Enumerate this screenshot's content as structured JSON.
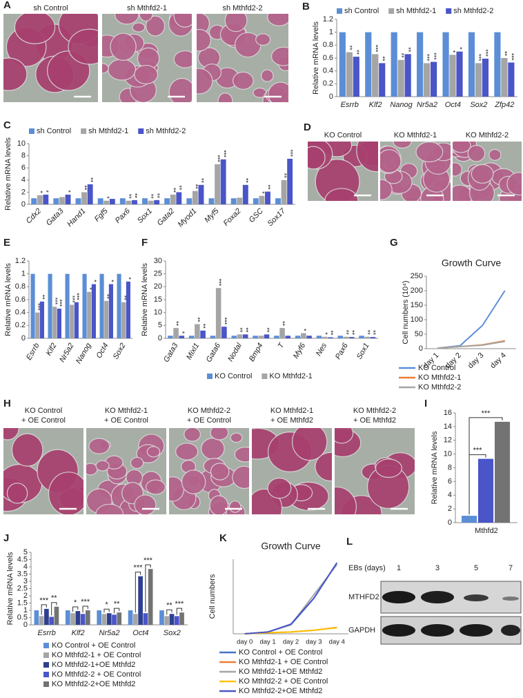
{
  "images": [
    {
      "panel": "A",
      "captions": [
        [
          "sh Control"
        ],
        [
          "sh Mthfd2-1"
        ],
        [
          "sh Mthfd2-2"
        ]
      ]
    },
    {
      "panel": "D",
      "captions": [
        [
          "KO Control"
        ],
        [
          "KO Mthfd2-1"
        ],
        [
          "KO Mthfd2-2"
        ]
      ]
    },
    {
      "panel": "H",
      "captions": [
        [
          "KO Control",
          "+ OE Control"
        ],
        [
          "KO Mthfd2-1",
          "+ OE Control"
        ],
        [
          "KO Mthfd2-2",
          "+ OE Control"
        ],
        [
          "KO Mthfd2-1",
          "+ OE Mthfd2"
        ],
        [
          "KO Mthfd2-2",
          "+ OE Mthfd2"
        ]
      ]
    }
  ],
  "blot": {
    "panel": "L",
    "header": "EBs (days)",
    "days": [
      "1",
      "3",
      "5",
      "7"
    ],
    "rows": [
      "MTHFD2",
      "GAPDH"
    ]
  },
  "chart_data": [
    {
      "panel": "B",
      "type": "bar",
      "ylabel": "Relative mRNA levels",
      "legend": "top",
      "categories": [
        "Esrrb",
        "Klf2",
        "Nanog",
        "Nr5a2",
        "Oct4",
        "Sox2",
        "Zfp42"
      ],
      "ylim": [
        0,
        1.2
      ],
      "yticks": [
        0,
        0.2,
        0.4,
        0.6,
        0.8,
        1,
        1.2
      ],
      "series": [
        {
          "name": "sh Control",
          "color": "#5b8ed6",
          "values": [
            1,
            1,
            1,
            1,
            1,
            1,
            1
          ]
        },
        {
          "name": "sh Mthfd2-1",
          "color": "#a5a5a5",
          "values": [
            0.69,
            0.66,
            0.57,
            0.52,
            0.65,
            0.52,
            0.6
          ],
          "significance": [
            "**",
            "***",
            "**",
            "***",
            "*",
            "***",
            "**"
          ]
        },
        {
          "name": "sh Mthfd2-2",
          "color": "#4a55c8",
          "values": [
            0.62,
            0.52,
            0.66,
            0.54,
            0.7,
            0.59,
            0.53
          ],
          "significance": [
            "**",
            "**",
            "**",
            "***",
            "*",
            "***",
            "***"
          ]
        }
      ]
    },
    {
      "panel": "C",
      "type": "bar",
      "ylabel": "Relative mRNA levels",
      "legend": "top",
      "categories": [
        "Cdx2",
        "Gata3",
        "Hand1",
        "Fgf5",
        "Pax6",
        "Sox1",
        "Gata2",
        "Myod1",
        "Myf5",
        "Foxa2",
        "GSC",
        "Sox17"
      ],
      "ylim": [
        0,
        10
      ],
      "yticks": [
        0,
        2,
        4,
        6,
        8,
        10
      ],
      "series": [
        {
          "name": "sh Control",
          "color": "#5b8ed6",
          "values": [
            1,
            1,
            1,
            1,
            1,
            1,
            1,
            1,
            1,
            1,
            1,
            1
          ]
        },
        {
          "name": "sh Mthfd2-1",
          "color": "#a5a5a5",
          "values": [
            1.5,
            1.2,
            2.0,
            0.6,
            0.6,
            0.6,
            1.6,
            2.2,
            6.6,
            1.1,
            1.4,
            4.0
          ],
          "significance": [
            "*",
            null,
            "**",
            "*",
            "**",
            "**",
            "**",
            "**",
            "***",
            null,
            "*",
            "**"
          ]
        },
        {
          "name": "sh Mthfd2-2",
          "color": "#4a55c8",
          "values": [
            1.6,
            1.6,
            3.3,
            0.9,
            0.7,
            0.7,
            2.0,
            3.2,
            7.4,
            3.2,
            2.1,
            7.5
          ],
          "significance": [
            "*",
            "*",
            "**",
            null,
            "**",
            "**",
            "**",
            "**",
            "***",
            "**",
            "**",
            "***"
          ]
        }
      ]
    },
    {
      "panel": "E",
      "type": "bar",
      "ylabel": "Relative mRNA levels",
      "categories": [
        "Esrrb",
        "Klf2",
        "Nr5a2",
        "Nanog",
        "Oct4",
        "Sox2"
      ],
      "ylim": [
        0,
        1.2
      ],
      "yticks": [
        0,
        0.2,
        0.4,
        0.6,
        0.8,
        1,
        1.2
      ],
      "series": [
        {
          "color": "#5b8ed6",
          "values": [
            1,
            1,
            1,
            1,
            1,
            1
          ]
        },
        {
          "color": "#a5a5a5",
          "values": [
            0.4,
            0.49,
            0.52,
            0.72,
            0.58,
            0.56
          ],
          "significance": [
            "***",
            "***",
            "***",
            "*",
            "**",
            "**"
          ]
        },
        {
          "color": "#4a55c8",
          "values": [
            0.57,
            0.46,
            0.56,
            0.84,
            0.84,
            0.88
          ],
          "significance": [
            "**",
            "***",
            "***",
            "*",
            "*",
            "*"
          ]
        }
      ]
    },
    {
      "panel": "F",
      "type": "bar",
      "ylabel": "Relative mRNA levels",
      "legend": "bottom",
      "categories": [
        "Gata3",
        "Mixl1",
        "Gata6",
        "Nodal",
        "Bmp4",
        "T",
        "Myf6",
        "Nes",
        "Pax6",
        "Sox1"
      ],
      "ylim": [
        0,
        30
      ],
      "yticks": [
        0,
        5,
        10,
        15,
        20,
        25,
        30
      ],
      "series": [
        {
          "name": "KO Control",
          "color": "#5b8ed6",
          "values": [
            1,
            1,
            1,
            1,
            1,
            1,
            1,
            1,
            1,
            1
          ]
        },
        {
          "name": "KO Mthfd2-1",
          "color": "#a5a5a5",
          "values": [
            4.0,
            5.5,
            19.5,
            1.5,
            1.0,
            4.0,
            2.0,
            0.6,
            0.6,
            0.6
          ],
          "significance": [
            "**",
            "**",
            "***",
            "**",
            null,
            "**",
            "*",
            "*",
            "**",
            "**"
          ]
        },
        {
          "color": "#4a55c8",
          "values": [
            1.0,
            3.0,
            4.5,
            1.5,
            1.5,
            1.0,
            1.0,
            0.4,
            0.5,
            0.5
          ],
          "significance": [
            "*",
            "**",
            "***",
            "**",
            "**",
            null,
            null,
            "**",
            "**",
            "**"
          ]
        }
      ]
    },
    {
      "panel": "G",
      "type": "line",
      "title": "Growth Curve",
      "ylabel": "Cell numbers (10⁴)",
      "legend": "bottom-left",
      "categories": [
        "day 1",
        "day 2",
        "day 3",
        "day 4"
      ],
      "ylim": [
        0,
        250
      ],
      "yticks": [
        0,
        50,
        100,
        150,
        200,
        250
      ],
      "series": [
        {
          "name": "KO Control",
          "color": "#5b8ed6",
          "values": [
            2,
            10,
            80,
            200
          ]
        },
        {
          "name": "KO Mthfd2-1",
          "color": "#ed7d31",
          "values": [
            2,
            7,
            13,
            27
          ]
        },
        {
          "name": "KO Mthfd2-2",
          "color": "#a5a5a5",
          "values": [
            2,
            7,
            12,
            25
          ]
        }
      ]
    },
    {
      "panel": "I",
      "type": "bar",
      "ylabel": "Relative mRNA levels",
      "categories": [
        "Mthfd2"
      ],
      "ylim": [
        0,
        16
      ],
      "yticks": [
        0,
        2,
        4,
        6,
        8,
        10,
        12,
        14,
        16
      ],
      "series": [
        {
          "color": "#5b8ed6",
          "values": [
            1
          ]
        },
        {
          "color": "#4a55c8",
          "values": [
            9.3
          ]
        },
        {
          "color": "#737373",
          "values": [
            14.7
          ]
        }
      ],
      "significance": [
        [
          "***",
          "***"
        ]
      ]
    },
    {
      "panel": "J",
      "type": "bar",
      "ylabel": "Relative mRNA levels",
      "legend": "bottom-left",
      "categories": [
        "Esrrb",
        "Klf2",
        "Nr5a2",
        "Oct4",
        "Sox2"
      ],
      "ylim": [
        0,
        5
      ],
      "yticks": [
        0,
        0.5,
        1,
        1.5,
        2,
        2.5,
        3,
        3.5,
        4,
        4.5,
        5
      ],
      "series": [
        {
          "name": "KO Control + OE Control",
          "color": "#5b8ed6",
          "values": [
            1,
            1,
            1,
            1,
            1
          ]
        },
        {
          "name": "KO Mthfd2-1 + OE Control",
          "color": "#a5a5a5",
          "values": [
            0.6,
            0.8,
            0.75,
            0.75,
            0.6
          ]
        },
        {
          "name": "KO Mthfd2-1+OE Mthfd2",
          "color": "#2f3f8f",
          "values": [
            1.1,
            0.95,
            0.8,
            3.35,
            0.75
          ]
        },
        {
          "name": "KO Mthfd2-2 + OE Control",
          "color": "#4a55c8",
          "values": [
            0.55,
            0.75,
            0.7,
            0.8,
            0.6
          ]
        },
        {
          "name": "KO Mthfd2-2+OE Mthfd2",
          "color": "#737373",
          "values": [
            1.25,
            1.0,
            0.85,
            3.85,
            0.85
          ]
        }
      ],
      "significance": [
        [
          "***",
          "**"
        ],
        [
          "*",
          "***"
        ],
        [
          "*",
          "**"
        ],
        [
          "***",
          "***"
        ],
        [
          "**",
          "***"
        ]
      ]
    },
    {
      "panel": "K",
      "type": "line",
      "title": "Growth Curve",
      "ylabel": "Cell numbers",
      "legend": "bottom-left",
      "categories": [
        "day 0",
        "day 1",
        "day 2",
        "day 3",
        "day 4"
      ],
      "ylim": [
        0,
        210
      ],
      "series": [
        {
          "name": "KO Control + OE Control",
          "color": "#4472c4",
          "values": [
            0,
            5,
            25,
            100,
            200
          ]
        },
        {
          "name": "KO Mthfd2-1 + OE Control",
          "color": "#ed7d31",
          "values": [
            0,
            3,
            5,
            10,
            18
          ]
        },
        {
          "name": "KO Mthfd2-1+OE Mthfd2",
          "color": "#a5a5a5",
          "values": [
            0,
            5,
            25,
            110,
            195
          ]
        },
        {
          "name": "KO Mthfd2-2 + OE Control",
          "color": "#ffc000",
          "values": [
            0,
            3,
            5,
            10,
            17
          ]
        },
        {
          "name": "KO Mthfd2-2+OE Mthfd2",
          "color": "#4a55c8",
          "values": [
            0,
            5,
            27,
            100,
            200
          ]
        }
      ]
    }
  ]
}
